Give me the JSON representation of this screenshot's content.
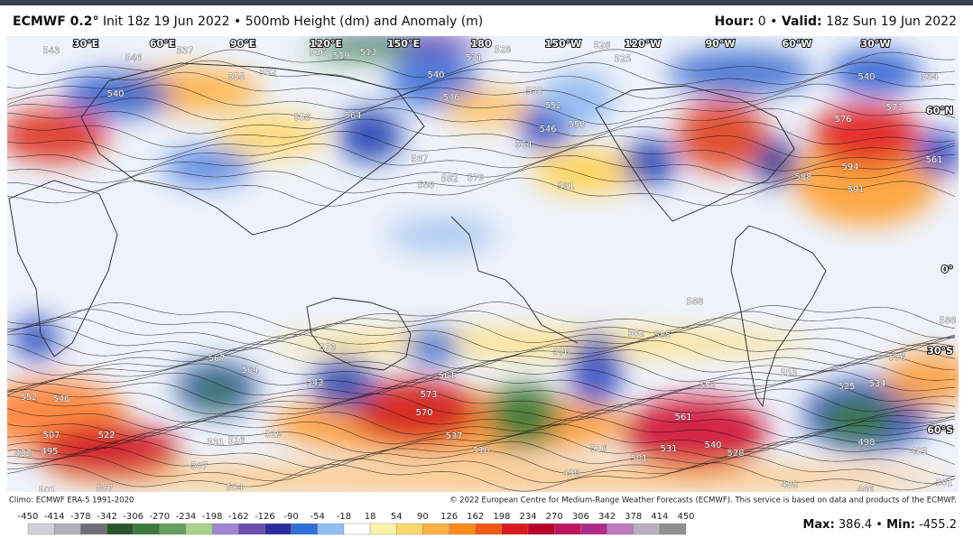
{
  "header": {
    "model": "ECMWF 0.2°",
    "description": "Init 18z 19 Jun 2022 • 500mb Height (dm) and Anomaly (m)",
    "hour_label": "Hour:",
    "hour_value": "0",
    "separator": "•",
    "valid_label": "Valid:",
    "valid_value": "18z Sun 19 Jun 2022"
  },
  "map": {
    "longitude_labels": [
      "30°E",
      "60°E",
      "90°E",
      "120°E",
      "150°E",
      "180",
      "150°W",
      "120°W",
      "90°W",
      "60°W",
      "30°W"
    ],
    "latitude_labels": [
      "60°N",
      "0°",
      "30°S",
      "60°S"
    ],
    "contour_labels": [
      "543",
      "546",
      "537",
      "516",
      "519",
      "513",
      "531",
      "528",
      "528",
      "525",
      "540",
      "552",
      "555",
      "540",
      "546",
      "558",
      "564",
      "555",
      "552",
      "558",
      "546",
      "564",
      "567",
      "582",
      "579",
      "588",
      "591",
      "576",
      "573",
      "588",
      "591",
      "594",
      "540",
      "534",
      "561",
      "588",
      "582",
      "585",
      "570",
      "573",
      "567",
      "564",
      "543",
      "561",
      "573",
      "570",
      "537",
      "552",
      "546",
      "507",
      "522",
      "519",
      "531",
      "516",
      "507",
      "492",
      "495",
      "504",
      "507",
      "501",
      "561",
      "531",
      "540",
      "528",
      "516",
      "510",
      "501",
      "498",
      "552",
      "555",
      "525",
      "534",
      "498",
      "495",
      "507",
      "501",
      "486",
      "489",
      "576",
      "588"
    ]
  },
  "footer": {
    "climo": "Climo: ECMWF ERA-5 1991-2020",
    "copyright": "© 2022 European Centre for Medium-Range Weather Forecasts (ECMWF). This service is based on data and products of the ECMWF."
  },
  "colorbar": {
    "ticks": [
      -450,
      -414,
      -378,
      -342,
      -306,
      -270,
      -234,
      -198,
      -162,
      -126,
      -90,
      -54,
      -18,
      18,
      54,
      90,
      126,
      162,
      198,
      234,
      270,
      306,
      342,
      378,
      414,
      450
    ],
    "colors": [
      "#d0d0d8",
      "#b0b0b8",
      "#6f6f78",
      "#2b552b",
      "#3c7a3c",
      "#62a25c",
      "#a7d38a",
      "#9f88d0",
      "#6a4fb0",
      "#2d2e9c",
      "#2f6fd6",
      "#8fbff2",
      "#ffffff",
      "#fff3a8",
      "#ffd86a",
      "#ffb347",
      "#ff8c1a",
      "#f05a14",
      "#d91a1a",
      "#b8002a",
      "#c0155d",
      "#b02a8a",
      "#c07ac0",
      "#b8b0c0",
      "#909090"
    ]
  },
  "stats": {
    "max_label": "Max:",
    "max_value": 386.4,
    "separator": "•",
    "min_label": "Min:",
    "min_value": -455.2
  }
}
